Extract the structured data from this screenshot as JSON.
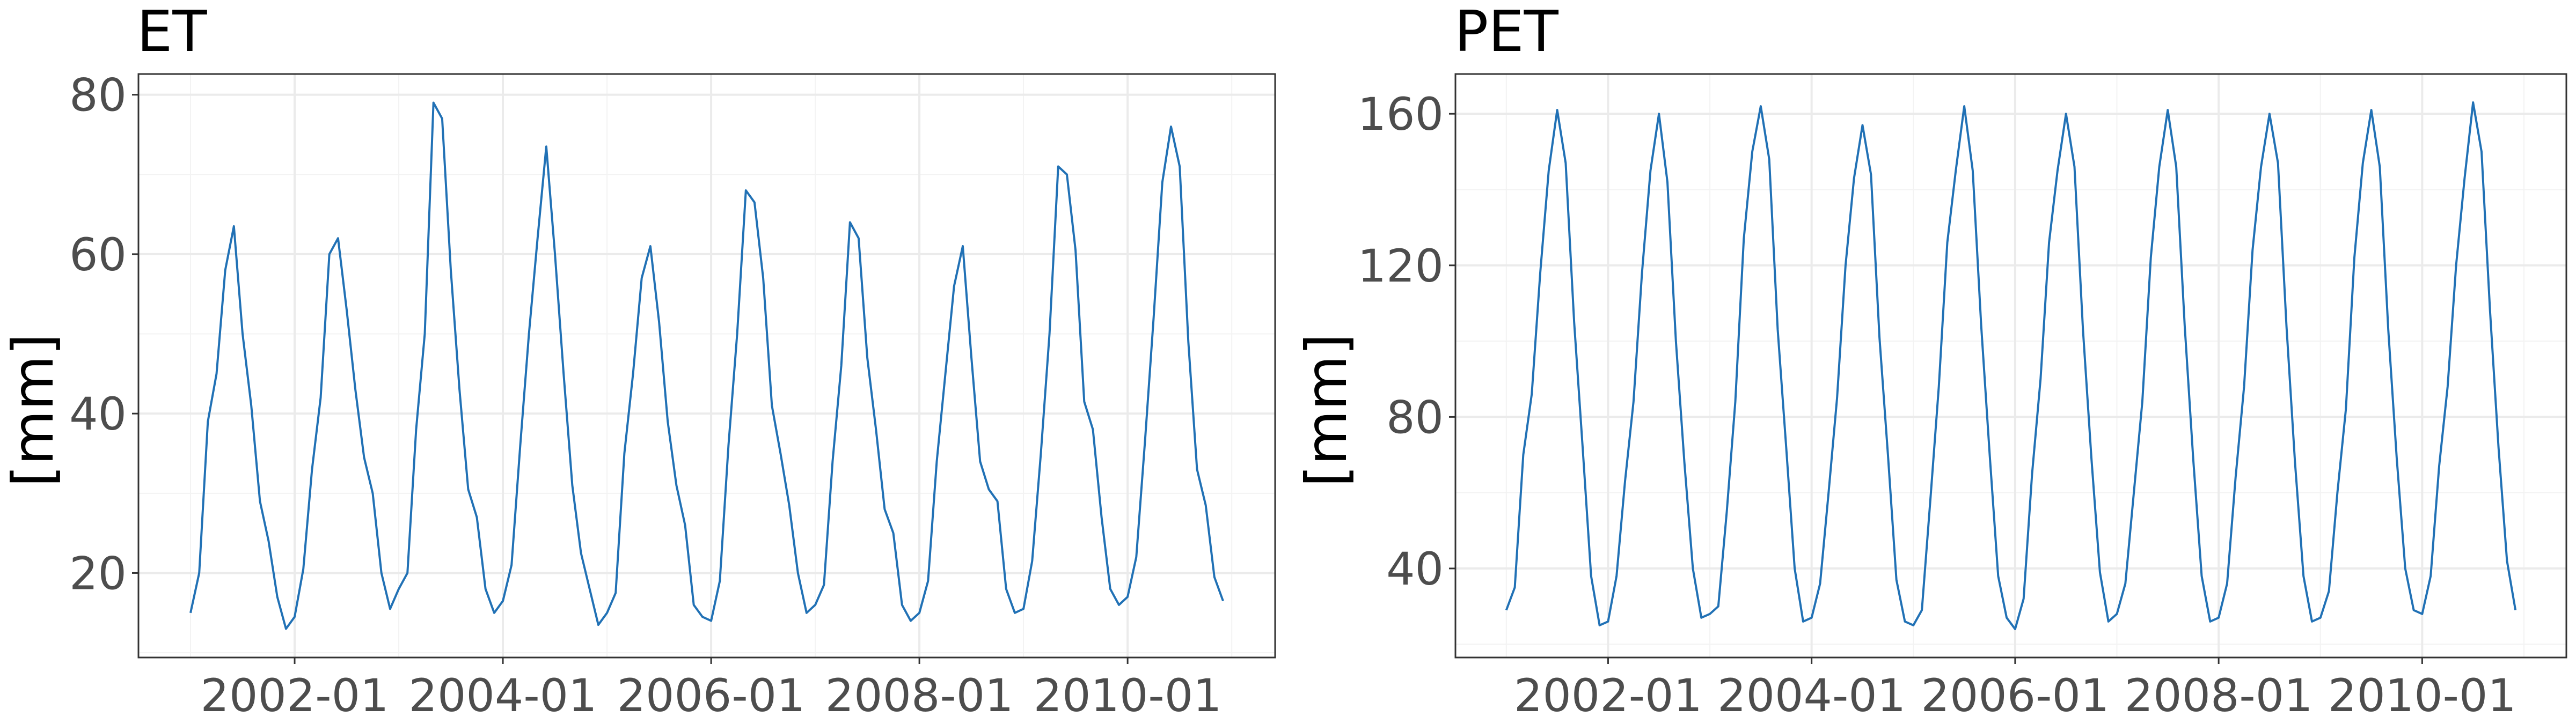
{
  "chart_data": [
    {
      "type": "line",
      "title": "ET",
      "ylabel": "[mm]",
      "xlabel": "",
      "xlim": [
        "2000-07",
        "2011-06"
      ],
      "ylim": [
        9.4,
        82.6
      ],
      "x_ticks": [
        "2002-01",
        "2004-01",
        "2006-01",
        "2008-01",
        "2010-01"
      ],
      "y_ticks": [
        20,
        40,
        60,
        80
      ],
      "grid": true,
      "color": "#2171b5",
      "series": [
        {
          "x": [
            "2001-01",
            "2001-02",
            "2001-03",
            "2001-04",
            "2001-05",
            "2001-06",
            "2001-07",
            "2001-08",
            "2001-09",
            "2001-10",
            "2001-11",
            "2001-12",
            "2002-01",
            "2002-02",
            "2002-03",
            "2002-04",
            "2002-05",
            "2002-06",
            "2002-07",
            "2002-08",
            "2002-09",
            "2002-10",
            "2002-11",
            "2002-12",
            "2003-01",
            "2003-02",
            "2003-03",
            "2003-04",
            "2003-05",
            "2003-06",
            "2003-07",
            "2003-08",
            "2003-09",
            "2003-10",
            "2003-11",
            "2003-12",
            "2004-01",
            "2004-02",
            "2004-03",
            "2004-04",
            "2004-05",
            "2004-06",
            "2004-07",
            "2004-08",
            "2004-09",
            "2004-10",
            "2004-11",
            "2004-12",
            "2005-01",
            "2005-02",
            "2005-03",
            "2005-04",
            "2005-05",
            "2005-06",
            "2005-07",
            "2005-08",
            "2005-09",
            "2005-10",
            "2005-11",
            "2005-12",
            "2006-01",
            "2006-02",
            "2006-03",
            "2006-04",
            "2006-05",
            "2006-06",
            "2006-07",
            "2006-08",
            "2006-09",
            "2006-10",
            "2006-11",
            "2006-12",
            "2007-01",
            "2007-02",
            "2007-03",
            "2007-04",
            "2007-05",
            "2007-06",
            "2007-07",
            "2007-08",
            "2007-09",
            "2007-10",
            "2007-11",
            "2007-12",
            "2008-01",
            "2008-02",
            "2008-03",
            "2008-04",
            "2008-05",
            "2008-06",
            "2008-07",
            "2008-08",
            "2008-09",
            "2008-10",
            "2008-11",
            "2008-12",
            "2009-01",
            "2009-02",
            "2009-03",
            "2009-04",
            "2009-05",
            "2009-06",
            "2009-07",
            "2009-08",
            "2009-09",
            "2009-10",
            "2009-11",
            "2009-12",
            "2010-01",
            "2010-02",
            "2010-03",
            "2010-04",
            "2010-05",
            "2010-06",
            "2010-07",
            "2010-08",
            "2010-09",
            "2010-10",
            "2010-11",
            "2010-12"
          ],
          "values": [
            15,
            20,
            39,
            45,
            58,
            63.5,
            50,
            41,
            29,
            24,
            17,
            13,
            14.5,
            20.5,
            33,
            42,
            60,
            62,
            53,
            43,
            34.5,
            30,
            20,
            15.5,
            18,
            20,
            38,
            50,
            79,
            77,
            58,
            43,
            30.5,
            27,
            18,
            15,
            16.5,
            21,
            36,
            50,
            62,
            73.5,
            60,
            45,
            31,
            22.5,
            18,
            13.5,
            15,
            17.5,
            35,
            45,
            57,
            61,
            51.5,
            39,
            31,
            26,
            16,
            14.5,
            14,
            19,
            36,
            50,
            68,
            66.5,
            57,
            41,
            35,
            28.5,
            20,
            15,
            16,
            18.5,
            34,
            46,
            64,
            62,
            47,
            38,
            28,
            25,
            16,
            14,
            15,
            19,
            34,
            45,
            56,
            61,
            47,
            34,
            30.5,
            29,
            18,
            15,
            15.5,
            21.5,
            35,
            50,
            71,
            70,
            60.5,
            41.5,
            38,
            27,
            18,
            16,
            17,
            22,
            36.5,
            52,
            69,
            76,
            71,
            49,
            33,
            28.5,
            19.5,
            16.5
          ]
        }
      ]
    },
    {
      "type": "line",
      "title": "PET",
      "ylabel": "[mm]",
      "xlabel": "",
      "xlim": [
        "2000-07",
        "2011-06"
      ],
      "ylim": [
        16.5,
        170.5
      ],
      "x_ticks": [
        "2002-01",
        "2004-01",
        "2006-01",
        "2008-01",
        "2010-01"
      ],
      "y_ticks": [
        40,
        80,
        120,
        160
      ],
      "grid": true,
      "color": "#2171b5",
      "series": [
        {
          "x": [
            "2001-01",
            "2001-02",
            "2001-03",
            "2001-04",
            "2001-05",
            "2001-06",
            "2001-07",
            "2001-08",
            "2001-09",
            "2001-10",
            "2001-11",
            "2001-12",
            "2002-01",
            "2002-02",
            "2002-03",
            "2002-04",
            "2002-05",
            "2002-06",
            "2002-07",
            "2002-08",
            "2002-09",
            "2002-10",
            "2002-11",
            "2002-12",
            "2003-01",
            "2003-02",
            "2003-03",
            "2003-04",
            "2003-05",
            "2003-06",
            "2003-07",
            "2003-08",
            "2003-09",
            "2003-10",
            "2003-11",
            "2003-12",
            "2004-01",
            "2004-02",
            "2004-03",
            "2004-04",
            "2004-05",
            "2004-06",
            "2004-07",
            "2004-08",
            "2004-09",
            "2004-10",
            "2004-11",
            "2004-12",
            "2005-01",
            "2005-02",
            "2005-03",
            "2005-04",
            "2005-05",
            "2005-06",
            "2005-07",
            "2005-08",
            "2005-09",
            "2005-10",
            "2005-11",
            "2005-12",
            "2006-01",
            "2006-02",
            "2006-03",
            "2006-04",
            "2006-05",
            "2006-06",
            "2006-07",
            "2006-08",
            "2006-09",
            "2006-10",
            "2006-11",
            "2006-12",
            "2007-01",
            "2007-02",
            "2007-03",
            "2007-04",
            "2007-05",
            "2007-06",
            "2007-07",
            "2007-08",
            "2007-09",
            "2007-10",
            "2007-11",
            "2007-12",
            "2008-01",
            "2008-02",
            "2008-03",
            "2008-04",
            "2008-05",
            "2008-06",
            "2008-07",
            "2008-08",
            "2008-09",
            "2008-10",
            "2008-11",
            "2008-12",
            "2009-01",
            "2009-02",
            "2009-03",
            "2009-04",
            "2009-05",
            "2009-06",
            "2009-07",
            "2009-08",
            "2009-09",
            "2009-10",
            "2009-11",
            "2009-12",
            "2010-01",
            "2010-02",
            "2010-03",
            "2010-04",
            "2010-05",
            "2010-06",
            "2010-07",
            "2010-08",
            "2010-09",
            "2010-10",
            "2010-11",
            "2010-12"
          ],
          "values": [
            29,
            35,
            70,
            86,
            118,
            145,
            161,
            147,
            105,
            72,
            38,
            25,
            26,
            38,
            63,
            84,
            118,
            145,
            160,
            142,
            100,
            68,
            40,
            27,
            28,
            30,
            55,
            84,
            127,
            150,
            162,
            148,
            103,
            72,
            40,
            26,
            27,
            36,
            60,
            85,
            120,
            143,
            157,
            144,
            101,
            70,
            37,
            26,
            25,
            29,
            58,
            88,
            126,
            145,
            162,
            145,
            104,
            70,
            38,
            27,
            24,
            32,
            65,
            90,
            126,
            145,
            160,
            146,
            103,
            69,
            39,
            26,
            28,
            36,
            60,
            84,
            122,
            146,
            161,
            146,
            104,
            69,
            38,
            26,
            27,
            36,
            64,
            88,
            124,
            146,
            160,
            147,
            104,
            68,
            38,
            26,
            27,
            34,
            60,
            82,
            122,
            147,
            161,
            146,
            103,
            69,
            40,
            29,
            28,
            38,
            67,
            88,
            120,
            143,
            163,
            150,
            108,
            72,
            42,
            29
          ]
        }
      ]
    }
  ]
}
